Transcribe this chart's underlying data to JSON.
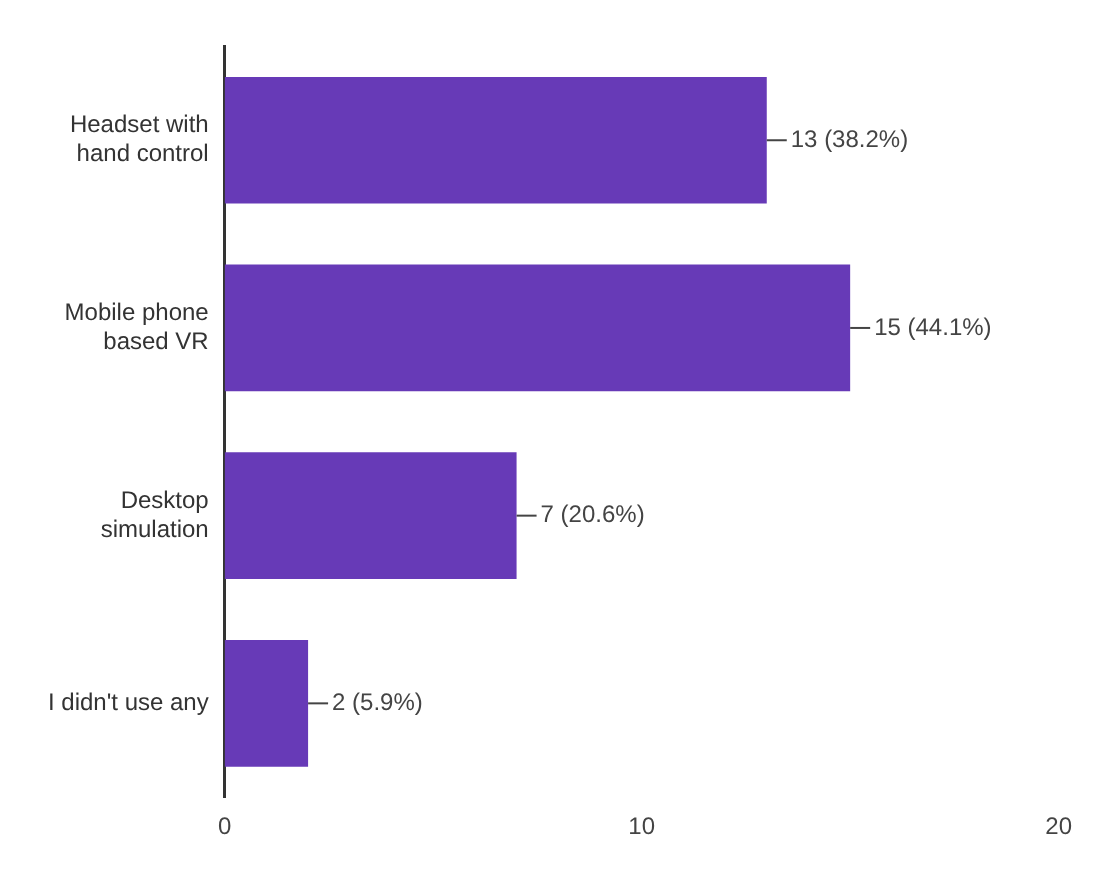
{
  "chart_data": {
    "type": "bar",
    "orientation": "horizontal",
    "categories": [
      "Headset with hand control",
      "Mobile phone based VR",
      "Desktop simulation",
      "I didn't use any"
    ],
    "values": [
      13,
      15,
      7,
      2
    ],
    "value_labels": [
      "13 (38.2%)",
      "15 (44.1%)",
      "7 (20.6%)",
      "2 (5.9%)"
    ],
    "color": "#673ab7",
    "xlim": [
      0,
      20
    ],
    "xticks": [
      0,
      10,
      20
    ],
    "grid": false,
    "legend": false
  }
}
